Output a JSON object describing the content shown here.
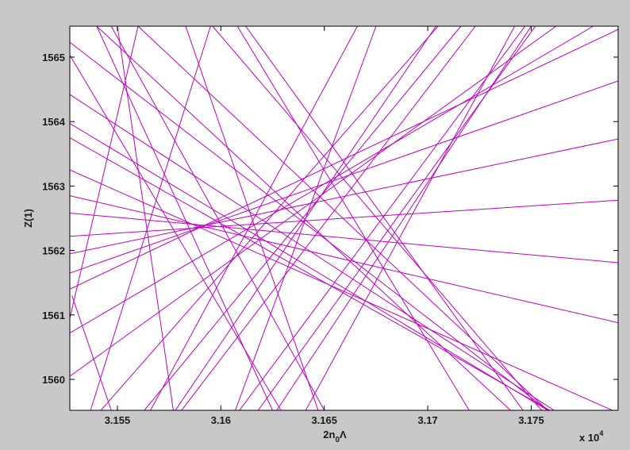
{
  "chart_data": {
    "type": "line",
    "xlabel": "2n",
    "xlabel_sub": "0",
    "xlabel_tail": "Λ",
    "ylabel": "Z(1)",
    "x_exponent_base": "x 10",
    "x_exponent_power": "4",
    "xlim": [
      3.1527,
      3.1792
    ],
    "ylim": [
      1559.52,
      1565.48
    ],
    "x_ticks": [
      3.155,
      3.16,
      3.165,
      3.17,
      3.175
    ],
    "x_tick_labels": [
      "3.155",
      "3.16",
      "3.165",
      "3.17",
      "3.175"
    ],
    "y_ticks": [
      1560,
      1561,
      1562,
      1563,
      1564,
      1565
    ],
    "y_tick_labels": [
      "1560",
      "1561",
      "1562",
      "1563",
      "1564",
      "1565"
    ],
    "grid": false,
    "line_color": "#c000c0",
    "plot_background": "#ffffff",
    "figure_background": "#c8c8c8",
    "series": [
      {
        "x": [
          3.1527,
          3.1792
        ],
        "y": [
          1562.22,
          1562.78
        ]
      },
      {
        "x": [
          3.1527,
          3.1792
        ],
        "y": [
          1562.58,
          1561.81
        ]
      },
      {
        "x": [
          3.1527,
          3.1792
        ],
        "y": [
          1562.85,
          1560.88
        ]
      },
      {
        "x": [
          3.1527,
          3.1792
        ],
        "y": [
          1561.95,
          1563.73
        ]
      },
      {
        "x": [
          3.1527,
          3.1792
        ],
        "y": [
          1561.65,
          1564.63
        ]
      },
      {
        "x": [
          3.1527,
          3.1792
        ],
        "y": [
          1561.4,
          1565.43
        ]
      },
      {
        "x": [
          3.1527,
          3.1792
        ],
        "y": [
          1563.25,
          1559.48
        ]
      },
      {
        "x": [
          3.1527,
          3.178
        ],
        "y": [
          1560.72,
          1565.48
        ]
      },
      {
        "x": [
          3.1527,
          3.1762
        ],
        "y": [
          1560.05,
          1565.48
        ]
      },
      {
        "x": [
          3.1527,
          3.1761
        ],
        "y": [
          1564.42,
          1559.52
        ]
      },
      {
        "x": [
          3.1527,
          3.1759
        ],
        "y": [
          1563.75,
          1559.52
        ]
      },
      {
        "x": [
          3.1527,
          3.1758
        ],
        "y": [
          1565.23,
          1559.52
        ]
      },
      {
        "x": [
          3.1527,
          3.1758
        ],
        "y": [
          1563.97,
          1559.52
        ]
      },
      {
        "x": [
          3.156,
          3.1758
        ],
        "y": [
          1565.48,
          1559.52
        ]
      },
      {
        "x": [
          3.1596,
          3.1755
        ],
        "y": [
          1565.48,
          1559.52
        ]
      },
      {
        "x": [
          3.154,
          3.174
        ],
        "y": [
          1565.48,
          1559.52
        ]
      },
      {
        "x": [
          3.1612,
          3.1746
        ],
        "y": [
          1565.48,
          1559.52
        ]
      },
      {
        "x": [
          3.1608,
          3.172
        ],
        "y": [
          1565.48,
          1559.52
        ]
      },
      {
        "x": [
          3.1542,
          3.1705
        ],
        "y": [
          1559.52,
          1565.48
        ]
      },
      {
        "x": [
          3.1563,
          3.1716
        ],
        "y": [
          1559.52,
          1565.48
        ]
      },
      {
        "x": [
          3.1581,
          3.1723
        ],
        "y": [
          1559.52,
          1565.48
        ]
      },
      {
        "x": [
          3.1609,
          3.1747
        ],
        "y": [
          1559.52,
          1565.48
        ]
      },
      {
        "x": [
          3.1618,
          3.1752
        ],
        "y": [
          1559.52,
          1565.48
        ]
      },
      {
        "x": [
          3.1627,
          3.175
        ],
        "y": [
          1559.52,
          1565.48
        ]
      },
      {
        "x": [
          3.1641,
          3.1742
        ],
        "y": [
          1559.52,
          1565.48
        ]
      },
      {
        "x": [
          3.1607,
          3.1675
        ],
        "y": [
          1559.52,
          1565.48
        ]
      },
      {
        "x": [
          3.1537,
          3.1595
        ],
        "y": [
          1559.52,
          1565.48
        ]
      },
      {
        "x": [
          3.1527,
          3.156
        ],
        "y": [
          1560.95,
          1565.48
        ]
      },
      {
        "x": [
          3.1547,
          3.1528
        ],
        "y": [
          1559.52,
          1561.3
        ]
      },
      {
        "x": [
          3.1547,
          3.165
        ],
        "y": [
          1565.48,
          1559.52
        ]
      },
      {
        "x": [
          3.154,
          3.1625
        ],
        "y": [
          1565.48,
          1559.52
        ]
      },
      {
        "x": [
          3.1583,
          3.1647
        ],
        "y": [
          1565.48,
          1559.52
        ]
      },
      {
        "x": [
          3.155,
          3.1577
        ],
        "y": [
          1565.48,
          1559.52
        ]
      },
      {
        "x": [
          3.1527,
          3.1629
        ],
        "y": [
          1565.03,
          1559.52
        ]
      },
      {
        "x": [
          3.1566,
          3.1666
        ],
        "y": [
          1559.52,
          1565.48
        ]
      },
      {
        "x": [
          3.1578,
          3.1704
        ],
        "y": [
          1559.52,
          1565.48
        ]
      }
    ]
  }
}
